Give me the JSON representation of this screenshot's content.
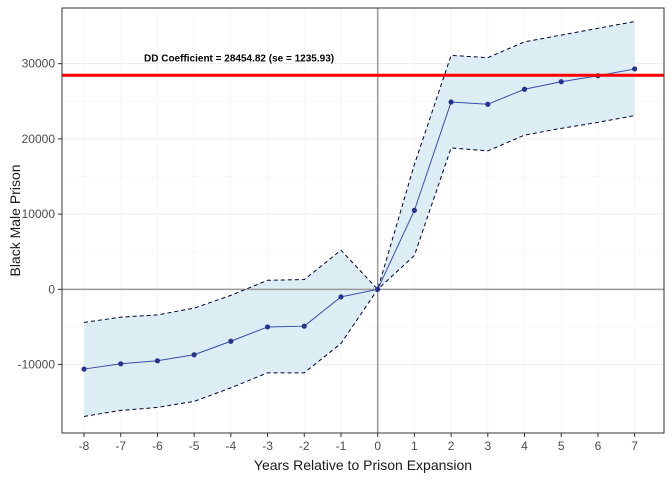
{
  "chart_data": {
    "type": "line",
    "title": "",
    "xlabel": "Years Relative to Prison Expansion",
    "ylabel": "Black Male Prison",
    "x": [
      -8,
      -7,
      -6,
      -5,
      -4,
      -3,
      -2,
      -1,
      0,
      1,
      2,
      3,
      4,
      5,
      6,
      7
    ],
    "series": [
      {
        "values": [
          -10600,
          -9900,
          -9500,
          -8700,
          -6900,
          -5000,
          -4900,
          -1000,
          0,
          10500,
          24900,
          24600,
          26600,
          27600,
          28400,
          29300
        ],
        "lower": [
          -16900,
          -16100,
          -15700,
          -14900,
          -13100,
          -11100,
          -11100,
          -7200,
          0,
          4500,
          18800,
          18400,
          20500,
          21400,
          22200,
          23100
        ],
        "upper": [
          -4400,
          -3700,
          -3400,
          -2500,
          -800,
          1200,
          1300,
          5200,
          0,
          16600,
          31100,
          30800,
          32900,
          33800,
          34700,
          35600
        ]
      }
    ],
    "xlim": [
      -8.6,
      7.8
    ],
    "ylim": [
      -19100,
      37400
    ],
    "xticks": [
      "-8",
      "-7",
      "-6",
      "-5",
      "-4",
      "-3",
      "-2",
      "-1",
      "0",
      "1",
      "2",
      "3",
      "4",
      "5",
      "6",
      "7"
    ],
    "yticks": [
      "-10000",
      "0",
      "10000",
      "20000",
      "30000"
    ],
    "reference_lines": {
      "horizontal_zero": 0,
      "vertical_zero": 0
    },
    "dd_coefficient_line": 28454.82,
    "annotation": "DD Coefficient = 28454.82 (se = 1235.93)",
    "grid": true,
    "colors": {
      "line": "#3a4ca6",
      "points": "#28338f",
      "band_fill": "#ddedf4",
      "band_edge": "#000033",
      "coefficient_line": "#ff0000",
      "reference": "#999999",
      "grid": "#ebebeb"
    }
  }
}
